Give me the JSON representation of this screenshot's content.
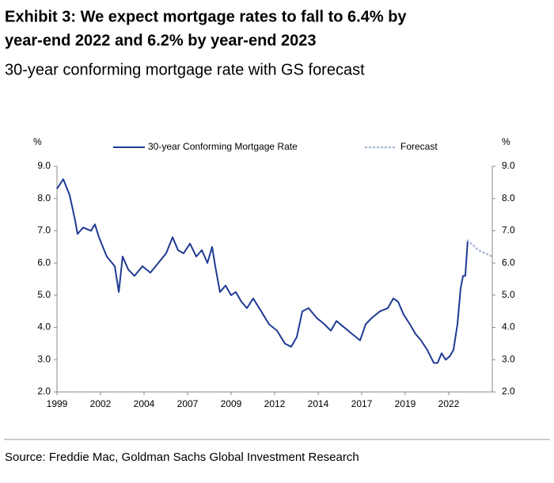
{
  "chart_data": {
    "type": "line",
    "title": [
      "Exhibit 3: We expect mortgage rates to fall to 6.4% by",
      "year-end 2022 and 6.2% by year-end 2023"
    ],
    "subtitle": "30-year conforming mortgage rate with GS forecast",
    "ylabel": "%",
    "source": "Source: Freddie Mac, Goldman Sachs Global Investment Research",
    "xlim": [
      1999,
      2024
    ],
    "xticks": [
      {
        "value": 1999,
        "label": "1999"
      },
      {
        "value": 2001.5,
        "label": "2002"
      },
      {
        "value": 2004,
        "label": "2004"
      },
      {
        "value": 2006.5,
        "label": "2007"
      },
      {
        "value": 2009,
        "label": "2009"
      },
      {
        "value": 2011.5,
        "label": "2012"
      },
      {
        "value": 2014,
        "label": "2014"
      },
      {
        "value": 2016.5,
        "label": "2017"
      },
      {
        "value": 2019,
        "label": "2019"
      },
      {
        "value": 2021.5,
        "label": "2022"
      }
    ],
    "ylim": [
      2,
      9
    ],
    "yticks": [
      {
        "value": 2,
        "label": "2.0"
      },
      {
        "value": 3,
        "label": "3.0"
      },
      {
        "value": 4,
        "label": "4.0"
      },
      {
        "value": 5,
        "label": "5.0"
      },
      {
        "value": 6,
        "label": "6.0"
      },
      {
        "value": 7,
        "label": "7.0"
      },
      {
        "value": 8,
        "label": "8.0"
      },
      {
        "value": 9,
        "label": "9.0"
      }
    ],
    "series": [
      {
        "name": "30-year Conforming Mortgage Rate",
        "color": "#1f3a93",
        "style": "solid",
        "x": [
          1999.0,
          1999.36,
          1999.73,
          2000.05,
          2000.18,
          2000.5,
          2000.95,
          2001.18,
          2001.41,
          2001.86,
          2002.32,
          2002.55,
          2002.77,
          2003.09,
          2003.45,
          2003.91,
          2004.36,
          2004.82,
          2005.27,
          2005.64,
          2005.95,
          2006.27,
          2006.64,
          2007.0,
          2007.32,
          2007.64,
          2007.91,
          2008.09,
          2008.36,
          2008.68,
          2009.0,
          2009.27,
          2009.59,
          2009.91,
          2010.27,
          2010.73,
          2011.18,
          2011.64,
          2012.09,
          2012.45,
          2012.77,
          2013.09,
          2013.45,
          2013.91,
          2014.36,
          2014.73,
          2015.05,
          2015.5,
          2015.95,
          2016.41,
          2016.73,
          2017.09,
          2017.55,
          2018.0,
          2018.32,
          2018.59,
          2018.91,
          2019.27,
          2019.59,
          2019.91,
          2020.27,
          2020.64,
          2020.86,
          2021.09,
          2021.32,
          2021.55,
          2021.77,
          2022.0,
          2022.18,
          2022.32,
          2022.45,
          2022.59
        ],
        "values": [
          8.3,
          8.6,
          8.1,
          7.3,
          6.9,
          7.1,
          7.0,
          7.2,
          6.8,
          6.2,
          5.9,
          5.1,
          6.2,
          5.8,
          5.6,
          5.9,
          5.7,
          6.0,
          6.3,
          6.8,
          6.4,
          6.3,
          6.6,
          6.2,
          6.4,
          6.0,
          6.5,
          5.9,
          5.1,
          5.3,
          5.0,
          5.1,
          4.8,
          4.6,
          4.9,
          4.5,
          4.1,
          3.9,
          3.5,
          3.4,
          3.7,
          4.5,
          4.6,
          4.3,
          4.1,
          3.9,
          4.2,
          4.0,
          3.8,
          3.6,
          4.1,
          4.3,
          4.5,
          4.6,
          4.9,
          4.8,
          4.4,
          4.1,
          3.8,
          3.6,
          3.3,
          2.9,
          2.9,
          3.2,
          3.0,
          3.1,
          3.3,
          4.1,
          5.2,
          5.6,
          5.6,
          6.7
        ]
      },
      {
        "name": "Forecast",
        "color": "#a9bcd6",
        "style": "dotted",
        "x": [
          2022.59,
          2023.2,
          2024.0
        ],
        "values": [
          6.7,
          6.4,
          6.2
        ]
      }
    ]
  }
}
